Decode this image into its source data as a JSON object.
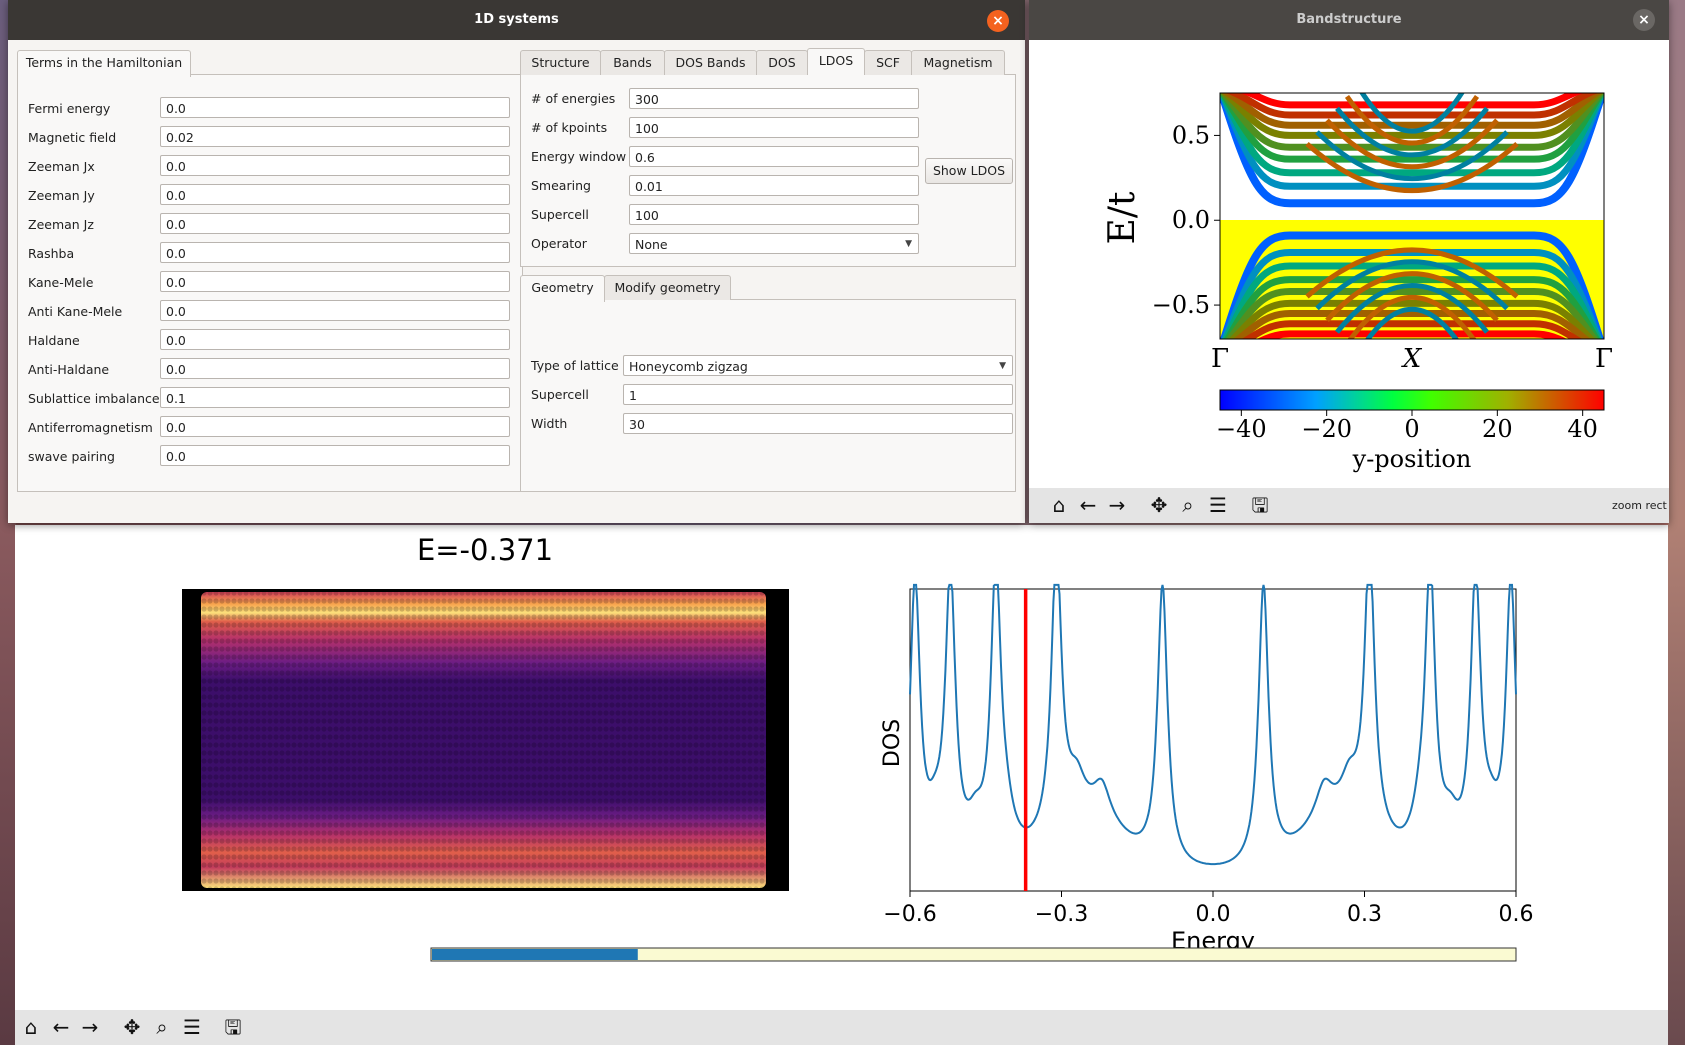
{
  "main_window": {
    "title": "1D systems",
    "left_tab": "Terms in the Hamiltonian",
    "hamiltonian_fields": [
      {
        "label": "Fermi energy",
        "value": "0.0"
      },
      {
        "label": "Magnetic field",
        "value": "0.02"
      },
      {
        "label": "Zeeman Jx",
        "value": "0.0"
      },
      {
        "label": "Zeeman Jy",
        "value": "0.0"
      },
      {
        "label": "Zeeman Jz",
        "value": "0.0"
      },
      {
        "label": "Rashba",
        "value": "0.0"
      },
      {
        "label": "Kane-Mele",
        "value": "0.0"
      },
      {
        "label": "Anti Kane-Mele",
        "value": "0.0"
      },
      {
        "label": "Haldane",
        "value": "0.0"
      },
      {
        "label": "Anti-Haldane",
        "value": "0.0"
      },
      {
        "label": "Sublattice imbalance",
        "value": "0.1"
      },
      {
        "label": "Antiferromagnetism",
        "value": "0.0"
      },
      {
        "label": "swave pairing",
        "value": "0.0"
      }
    ],
    "right_tabs": [
      "Structure",
      "Bands",
      "DOS Bands",
      "DOS",
      "LDOS",
      "SCF",
      "Magnetism"
    ],
    "active_right_tab": "LDOS",
    "ldos_fields": [
      {
        "label": "# of energies",
        "value": "300"
      },
      {
        "label": "# of kpoints",
        "value": "100"
      },
      {
        "label": "Energy window",
        "value": "0.6"
      },
      {
        "label": "Smearing",
        "value": "0.01"
      },
      {
        "label": "Supercell",
        "value": "100"
      }
    ],
    "operator_label": "Operator",
    "operator_value": "None",
    "show_ldos_button": "Show LDOS",
    "geometry_tabs": [
      "Geometry",
      "Modify geometry"
    ],
    "geometry_fields": {
      "lattice_label": "Type of lattice",
      "lattice_value": "Honeycomb zigzag",
      "supercell_label": "Supercell",
      "supercell_value": "1",
      "width_label": "Width",
      "width_value": "30"
    }
  },
  "band_window": {
    "title": "Bandstructure",
    "zoom_status": "zoom rect"
  },
  "chart_data": [
    {
      "type": "line",
      "ylabel": "E/t",
      "x_tick_labels": [
        "Γ",
        "X",
        "Γ"
      ],
      "y_ticks": [
        "0.5",
        "0.0",
        "−0.5"
      ],
      "ylim": [
        -0.7,
        0.75
      ],
      "colorbar": {
        "label": "y-position",
        "ticks": [
          "−40",
          "−20",
          "0",
          "20",
          "40"
        ],
        "range": [
          -45,
          45
        ]
      }
    },
    {
      "type": "heatmap",
      "title": "E=-0.371"
    },
    {
      "type": "line",
      "xlabel": "Energy",
      "ylabel": "DOS",
      "x_ticks": [
        "−0.6",
        "−0.3",
        "0.0",
        "0.3",
        "0.6"
      ],
      "xlim": [
        -0.6,
        0.6
      ],
      "selected_energy": -0.371,
      "peaks": [
        -0.59,
        -0.52,
        -0.43,
        -0.31,
        -0.1,
        0.1,
        0.31,
        0.43,
        0.52,
        0.59
      ],
      "slider_fraction": 0.19
    }
  ],
  "colors": {
    "dos_line": "#1f77b4",
    "marker": "#ff0000",
    "slider_fill": "#1f77b4",
    "slider_bg": "#fafad2"
  }
}
